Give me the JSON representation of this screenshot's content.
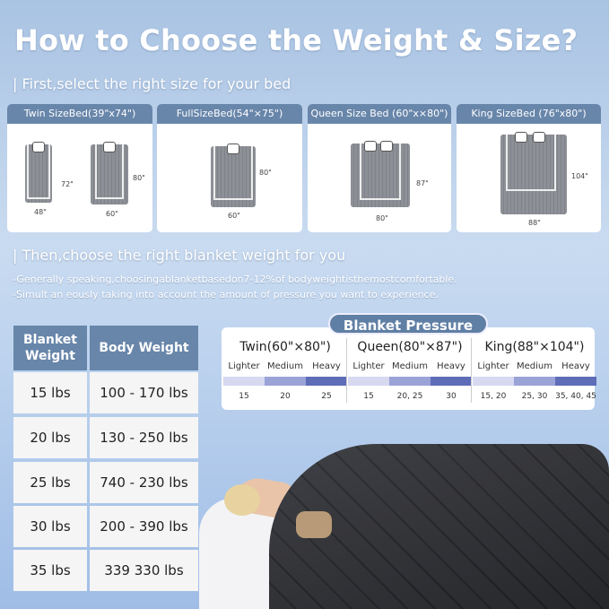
{
  "title": "How to Choose the Weight & Size?",
  "step1": "| First,select the right size for your bed",
  "beds": [
    {
      "label": "Twin SizeBed(39\"x74\")",
      "dims": [
        {
          "w": "48\"",
          "h": "72\""
        },
        {
          "w": "60\"",
          "h": "80\""
        }
      ]
    },
    {
      "label": "FullSizeBed(54\"×75\")",
      "dims": [
        {
          "w": "60\"",
          "h": "80\""
        }
      ]
    },
    {
      "label": "Queen Size Bed  (60\"x×80\")",
      "dims": [
        {
          "w": "80\"",
          "h": "87\""
        }
      ]
    },
    {
      "label": "King SizeBed (76\"x80\")",
      "dims": [
        {
          "w": "88\"",
          "h": "104\""
        }
      ]
    }
  ],
  "step2": "| Then,choose the right blanket weight for you",
  "notes": [
    "-Generally speaking,choosingablanketbasedon7-12%of bodyweightisthemostcomfortable.",
    "-Simult an eousIy taking into account the amount of pressure you want to experience."
  ],
  "table": {
    "headers": [
      "Blanket Weight",
      "Body Weight"
    ],
    "rows": [
      [
        "15 lbs",
        "100 - 170 lbs"
      ],
      [
        "20 lbs",
        "130 - 250 lbs"
      ],
      [
        "25 lbs",
        "740 - 230 lbs"
      ],
      [
        "30 lbs",
        "200 - 390 lbs"
      ],
      [
        "35 lbs",
        "339  330 lbs"
      ]
    ]
  },
  "pressure": {
    "title": "Blanket Pressure",
    "levels": [
      "Lighter",
      "Medium",
      "Heavy"
    ],
    "colors": [
      "#d6d9f0",
      "#9aa3d8",
      "#5f6cb8"
    ],
    "groups": [
      {
        "name": "Twin(60\"×80\")",
        "values": [
          "15",
          "20",
          "25"
        ]
      },
      {
        "name": "Queen(80\"×87\")",
        "values": [
          "15",
          "20, 25",
          "30"
        ]
      },
      {
        "name": "King(88\"×104\")",
        "values": [
          "15, 20",
          "25, 30",
          "35, 40, 45"
        ]
      }
    ]
  }
}
